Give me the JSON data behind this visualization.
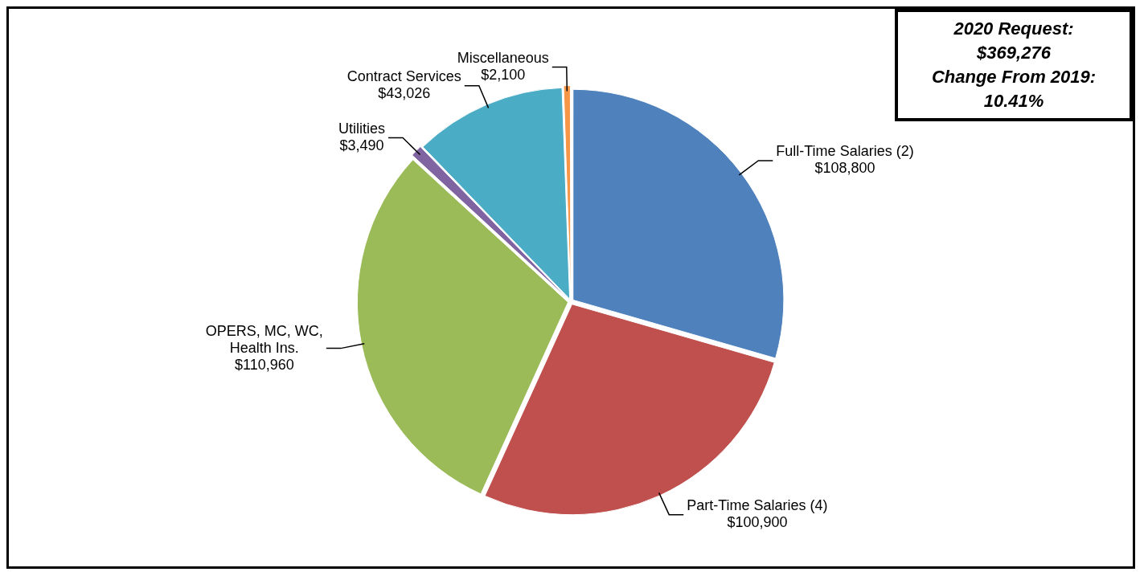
{
  "chart_data": {
    "type": "pie",
    "categories": [
      "Full-Time Salaries (2)",
      "Part-Time Salaries (4)",
      "OPERS, MC, WC, Health Ins.",
      "Utilities",
      "Contract Services",
      "Miscellaneous"
    ],
    "values": [
      108800,
      100900,
      110960,
      3490,
      43026,
      2100
    ],
    "value_labels": [
      "$108,800",
      "$100,900",
      "$110,960",
      "$3,490",
      "$43,026",
      "$2,100"
    ],
    "colors": [
      "#4f81bd",
      "#c0504d",
      "#9bbb59",
      "#8064a2",
      "#4bacc6",
      "#f79646"
    ],
    "legend": false,
    "annotations": [
      "2020 Request:",
      "$369,276",
      "Change From 2019:",
      "10.41%"
    ]
  }
}
